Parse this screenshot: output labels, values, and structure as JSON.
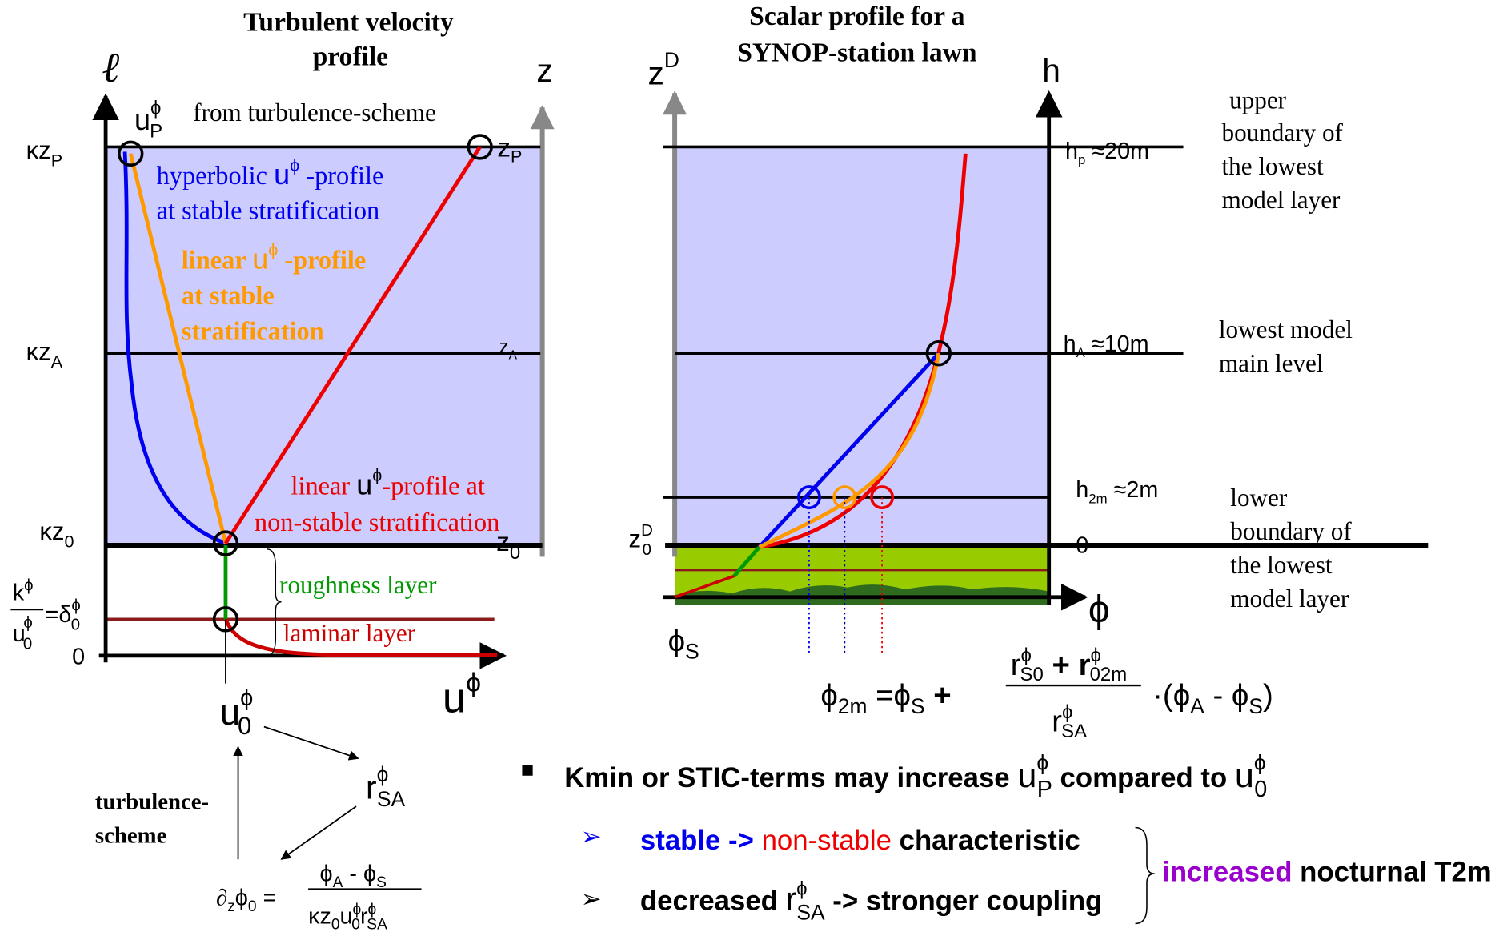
{
  "left": {
    "title": [
      "Turbulent velocity",
      "profile"
    ],
    "axis_l": "ℓ",
    "axis_z": "z",
    "axis_u": {
      "base": "u",
      "sup": "ϕ"
    },
    "tick_kzp": {
      "base": "κz",
      "sub": "P"
    },
    "tick_kza": {
      "base": "κz",
      "sub": "A"
    },
    "tick_kz0": {
      "base": "κz",
      "sub": "0"
    },
    "tick_delta": {
      "num": "k",
      "num_sup": "ϕ",
      "den": "u",
      "den_sup": "ϕ",
      "den_sub": "0",
      "eq": "=δ",
      "eq_sup": "ϕ",
      "eq_sub": "0"
    },
    "tick_zero": "0",
    "up_label": {
      "base": "u",
      "sup": "ϕ",
      "sub": "P"
    },
    "from_turbulence": "from turbulence-scheme",
    "zp": {
      "base": "z",
      "sub": "P"
    },
    "za": {
      "base": "z",
      "sub": "A"
    },
    "z0": {
      "base": "z",
      "sub": "0"
    },
    "hyperbolic": {
      "a": "hyperbolic ",
      "u": "u",
      "sup": "ϕ",
      "b": " -profile",
      "line2": "at stable stratification"
    },
    "linear_stable": {
      "a": "linear ",
      "u": "u",
      "sup": "ϕ",
      "b": " -profile",
      "line2": "at stable",
      "line3": "stratification"
    },
    "linear_nonstable": {
      "a": "linear ",
      "u": "u",
      "sup": "ϕ",
      "b": "-profile at",
      "line2": "non-stable stratification"
    },
    "roughness": "roughness layer",
    "laminar": "laminar layer",
    "u0": {
      "base": "u",
      "sup": "ϕ",
      "sub": "0"
    },
    "rsa": {
      "base": "r",
      "sup": "ϕ",
      "sub": "SA"
    },
    "turbulence_scheme": [
      "turbulence-",
      "scheme"
    ],
    "formula": {
      "d": "∂",
      "dsub": "z",
      "phi": "ϕ",
      "phisub": "0",
      "eq": " =",
      "num": [
        "ϕ",
        "A",
        " - ",
        "ϕ",
        "S"
      ],
      "den": [
        "κz",
        "0",
        "u",
        "ϕ",
        "0",
        "r",
        "ϕ",
        "SA"
      ]
    }
  },
  "right": {
    "title": [
      "Scalar profile for a",
      "SYNOP-station lawn"
    ],
    "axis_zd": {
      "base": "z",
      "sup": "D"
    },
    "axis_h": "h",
    "axis_phi": "ϕ",
    "phi_s": {
      "base": "ϕ",
      "sub": "S"
    },
    "z0d": {
      "base": "z",
      "sup": "D",
      "sub": "0"
    },
    "hp": {
      "base": "h",
      "sub": "p",
      "rest": " ≈20m"
    },
    "ha": {
      "base": "h",
      "sub": "A",
      "rest": " ≈10m"
    },
    "h2m": {
      "base": "h",
      "sub": "2m",
      "rest": " ≈2m"
    },
    "h0": "0",
    "upper_note": [
      "upper",
      "boundary of",
      "the lowest",
      "model layer"
    ],
    "main_note": [
      "lowest model",
      "main level"
    ],
    "lower_note": [
      "lower",
      "boundary of",
      "the lowest",
      "model layer"
    ],
    "formula": {
      "lhs": "ϕ",
      "lhs_sub": "2m",
      "eq": " =ϕ",
      "eq_sub": "S",
      "plus": " +",
      "num": [
        "r",
        "ϕ",
        "S0",
        " + r",
        "ϕ",
        "02m"
      ],
      "den": [
        "r",
        "ϕ",
        "SA"
      ],
      "tail": [
        "·(ϕ",
        "A",
        " -  ϕ",
        "S",
        ")"
      ]
    }
  },
  "bullets": {
    "main": {
      "a": "Kmin or STIC-terms may increase ",
      "u1": "u",
      "u1_sup": "ϕ",
      "u1_sub": "P",
      "b": " compared to ",
      "u2": "u",
      "u2_sup": "ϕ",
      "u2_sub": "0"
    },
    "sub1": {
      "marker": "➢",
      "stable": "stable",
      "arrow": " ->",
      "nonstable": " non-stable",
      "rest": " characteristic"
    },
    "sub2": {
      "marker": "➢",
      "a": "decreased ",
      "r": "r",
      "r_sup": "ϕ",
      "r_sub": "SA",
      "rest": "  -> stronger coupling"
    },
    "result": {
      "increased": "increased",
      "rest": " nocturnal T2m"
    }
  }
}
